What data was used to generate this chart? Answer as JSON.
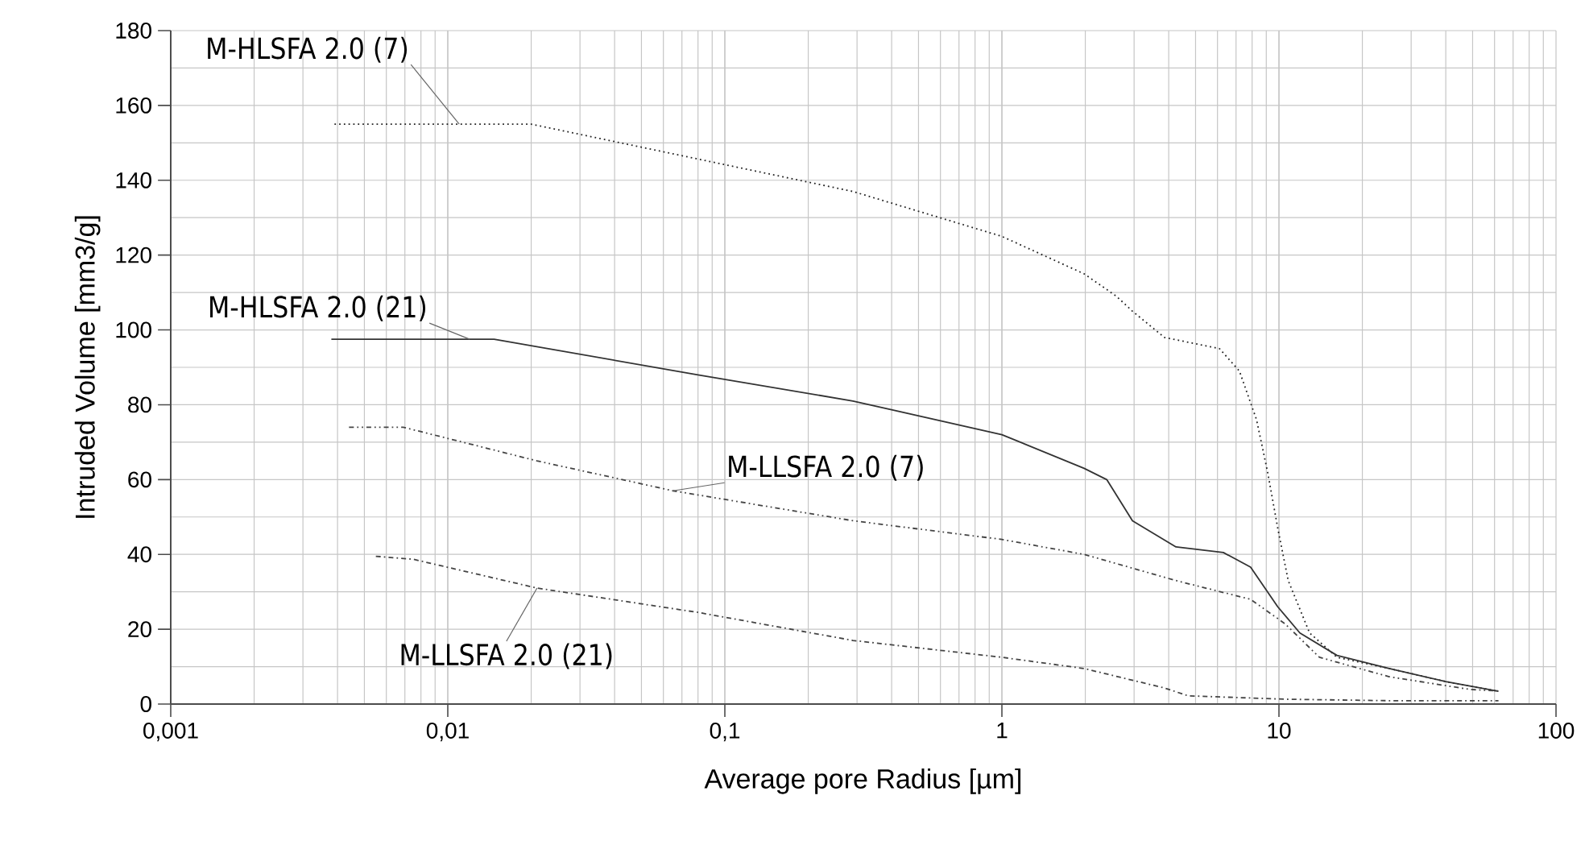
{
  "chart_data": {
    "type": "line",
    "xlabel": "Average pore Radius [µm]",
    "ylabel": "Intruded Volume [mm3/g]",
    "log": "x",
    "xlim": [
      0.001,
      100
    ],
    "ylim": [
      0,
      180
    ],
    "xticks": [
      {
        "value": 0.001,
        "label": "0,001"
      },
      {
        "value": 0.01,
        "label": "0,01"
      },
      {
        "value": 0.1,
        "label": "0,1"
      },
      1,
      10,
      100
    ],
    "yticks": [
      0,
      20,
      40,
      60,
      80,
      100,
      120,
      140,
      160,
      180
    ],
    "grid": true,
    "series": [
      {
        "name": "M-HLSFA 2.0 (7)",
        "color": "#222222",
        "line_style": "dotted",
        "x": [
          0.0039,
          0.011,
          0.02,
          0.29,
          1,
          1.98,
          2.59,
          2.96,
          3.86,
          6.1,
          7.2,
          8.3,
          9.1,
          9.9,
          10.8,
          12.9,
          16.2,
          25,
          40,
          62
        ],
        "values": [
          155,
          155,
          155,
          137,
          125,
          115,
          109,
          105,
          98,
          95,
          89,
          76,
          62,
          47,
          33,
          19,
          12.5,
          9.5,
          6,
          3.4
        ]
      },
      {
        "name": "M-HLSFA 2.0 (21)",
        "color": "#333333",
        "line_style": "solid",
        "x": [
          0.0038,
          0.012,
          0.0147,
          0.08,
          0.29,
          1,
          1.98,
          2.39,
          2.96,
          4.25,
          6.3,
          7.9,
          9.9,
          11.9,
          16.2,
          25,
          40,
          62
        ],
        "values": [
          97.5,
          97.5,
          97.5,
          88,
          81,
          72,
          63,
          60,
          49,
          42,
          40.5,
          36.6,
          26,
          19,
          13,
          9.5,
          6,
          3.4
        ]
      },
      {
        "name": "M-LLSFA 2.0 (7)",
        "color": "#444444",
        "line_style": "dashdotdotted",
        "x": [
          0.0044,
          0.0069,
          0.021,
          0.065,
          0.29,
          1,
          1.98,
          4.25,
          7.9,
          10.5,
          14,
          25,
          49,
          62
        ],
        "values": [
          74,
          74,
          65,
          57,
          49,
          44,
          40,
          33,
          28,
          21.5,
          12.5,
          7.3,
          3.9,
          3.5
        ]
      },
      {
        "name": "M-LLSFA 2.0 (21)",
        "color": "#444444",
        "line_style": "dashdotted",
        "x": [
          0.0055,
          0.0075,
          0.021,
          0.08,
          0.29,
          1,
          1.98,
          3.86,
          4.7,
          10.5,
          25,
          62
        ],
        "values": [
          39.5,
          38.7,
          31,
          24.5,
          17,
          12.5,
          9.5,
          4.3,
          2.2,
          1.3,
          0.9,
          0.9
        ]
      }
    ]
  }
}
